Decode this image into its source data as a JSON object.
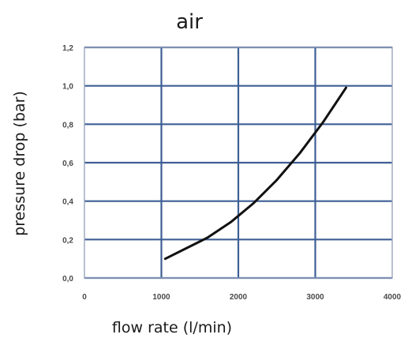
{
  "chart_data": {
    "type": "line",
    "title": "air",
    "xlabel": "flow rate (l/min)",
    "ylabel": "pressure drop (bar)",
    "xlim": [
      0,
      4000
    ],
    "ylim": [
      0,
      1.2
    ],
    "x_ticks": [
      0,
      1000,
      2000,
      3000,
      4000
    ],
    "x_tick_labels": [
      "0",
      "1000",
      "2000",
      "3000",
      "4000"
    ],
    "y_ticks": [
      0,
      0.2,
      0.4,
      0.6,
      0.8,
      1.0,
      1.2
    ],
    "y_tick_labels": [
      "0,0",
      "0,2",
      "0,4",
      "0,6",
      "0,8",
      "1,0",
      "1,2"
    ],
    "grid": true,
    "series": [
      {
        "x": [
          1050,
          1300,
          1600,
          1900,
          2200,
          2500,
          2800,
          3100,
          3400
        ],
        "y": [
          0.1,
          0.15,
          0.21,
          0.29,
          0.39,
          0.51,
          0.65,
          0.81,
          0.99
        ]
      }
    ],
    "colors": {
      "grid": "#3e5f95",
      "frame": "#9aa6bd",
      "line": "#111111"
    }
  }
}
